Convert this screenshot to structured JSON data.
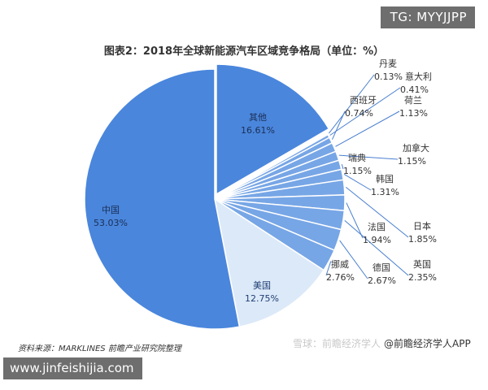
{
  "overlay_tag": "TG: MYYJJPP",
  "website": "www.jinfeishijia.com",
  "source_note": "资料来源：MARKLINES 前瞻产业研究院整理",
  "footer_right": {
    "watermark": "雪球：前瞻经济学人",
    "text": "@前瞻经济学人APP"
  },
  "colors": {
    "main": "#4a86dc",
    "us": "#dce9f8",
    "small": "#77a6e6",
    "line": "#4a7fd0",
    "edge": "#ffffff"
  },
  "chart_data": {
    "type": "pie",
    "title": "图表2：2018年全球新能源汽车区域竞争格局（单位：%）",
    "slices": [
      {
        "label": "其他",
        "value": 16.61
      },
      {
        "label": "丹麦",
        "value": 0.13
      },
      {
        "label": "意大利",
        "value": 0.41
      },
      {
        "label": "西班牙",
        "value": 0.74
      },
      {
        "label": "荷兰",
        "value": 1.13
      },
      {
        "label": "加拿大",
        "value": 1.15
      },
      {
        "label": "瑞典",
        "value": 1.15
      },
      {
        "label": "韩国",
        "value": 1.31
      },
      {
        "label": "日本",
        "value": 1.85
      },
      {
        "label": "法国",
        "value": 1.94
      },
      {
        "label": "英国",
        "value": 2.35
      },
      {
        "label": "德国",
        "value": 2.67
      },
      {
        "label": "挪威",
        "value": 2.76
      },
      {
        "label": "美国",
        "value": 12.75
      },
      {
        "label": "中国",
        "value": 53.03
      }
    ]
  }
}
